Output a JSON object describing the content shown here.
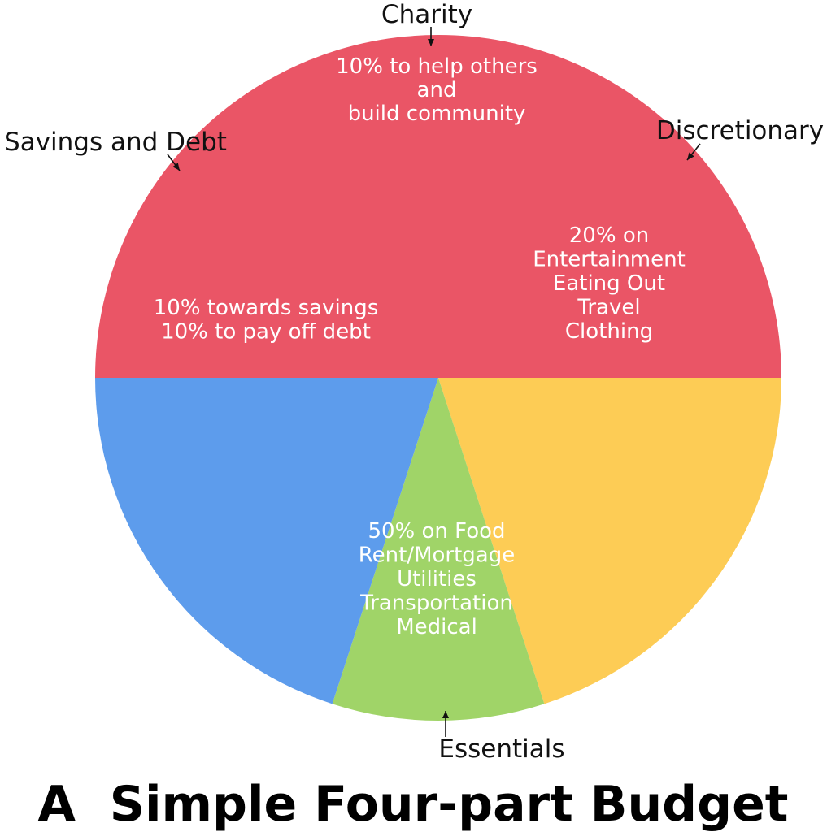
{
  "chart_data": {
    "type": "pie",
    "title": "A  Simple Four-part Budget",
    "slices": [
      {
        "label": "Essentials",
        "value": 50,
        "color": "#EA5566",
        "description": [
          "50% on Food",
          "Rent/Mortgage",
          "Utilities",
          "Transportation",
          "Medical"
        ]
      },
      {
        "label": "Savings and Debt",
        "value": 20,
        "color": "#FDCC55",
        "description": [
          "10% towards savings",
          "10% to pay off debt"
        ]
      },
      {
        "label": "Charity",
        "value": 10,
        "color": "#A0D468",
        "description": [
          "10% to help others",
          "and",
          "build community"
        ]
      },
      {
        "label": "Discretionary",
        "value": 20,
        "color": "#5D9CEC",
        "description": [
          "20% on",
          "Entertainment",
          "Eating Out",
          "Travel",
          "Clothing"
        ]
      }
    ]
  }
}
